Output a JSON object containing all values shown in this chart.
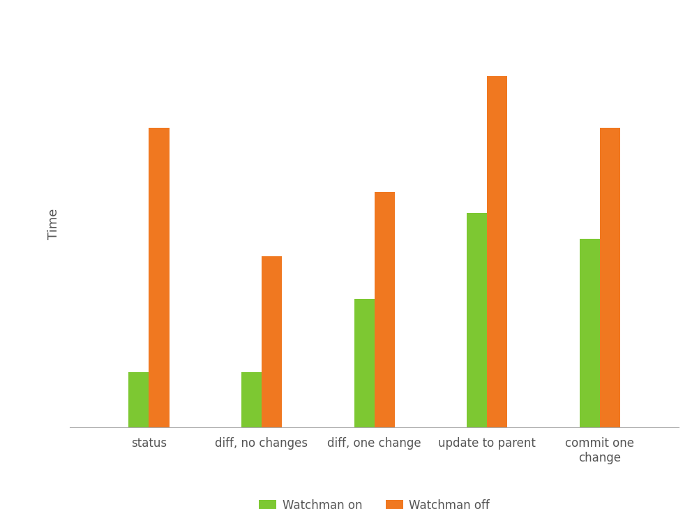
{
  "categories": [
    "status",
    "diff, no changes",
    "diff, one change",
    "update to parent",
    "commit one\nchange"
  ],
  "watchman_on": [
    0.13,
    0.13,
    0.3,
    0.5,
    0.44
  ],
  "watchman_off": [
    0.7,
    0.4,
    0.55,
    0.82,
    0.7
  ],
  "color_on": "#7dc832",
  "color_off": "#f07820",
  "ylabel": "Time",
  "legend_on": "Watchman on",
  "legend_off": "Watchman off",
  "bar_width": 0.18,
  "background_color": "#ffffff",
  "ylim": [
    0,
    0.95
  ],
  "figsize": [
    10.03,
    7.29
  ],
  "dpi": 100
}
